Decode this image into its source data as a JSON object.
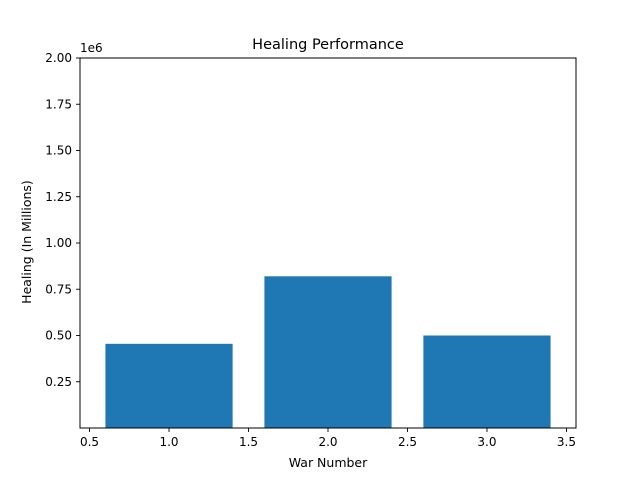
{
  "chart_data": {
    "type": "bar",
    "title": "Healing Performance",
    "xlabel": "War Number",
    "ylabel": "Healing (In Millions)",
    "y_scale_label": "1e6",
    "x": [
      1.0,
      2.0,
      3.0
    ],
    "values": [
      455000,
      820000,
      500000
    ],
    "bar_width": 0.8,
    "xlim": [
      0.44,
      3.56
    ],
    "ylim": [
      0,
      2000000
    ],
    "x_ticks": [
      {
        "value": 0.5,
        "label": "0.5"
      },
      {
        "value": 1.0,
        "label": "1.0"
      },
      {
        "value": 1.5,
        "label": "1.5"
      },
      {
        "value": 2.0,
        "label": "2.0"
      },
      {
        "value": 2.5,
        "label": "2.5"
      },
      {
        "value": 3.0,
        "label": "3.0"
      },
      {
        "value": 3.5,
        "label": "3.5"
      }
    ],
    "y_ticks": [
      {
        "value": 250000,
        "label": "0.25"
      },
      {
        "value": 500000,
        "label": "0.50"
      },
      {
        "value": 750000,
        "label": "0.75"
      },
      {
        "value": 1000000,
        "label": "1.00"
      },
      {
        "value": 1250000,
        "label": "1.25"
      },
      {
        "value": 1500000,
        "label": "1.50"
      },
      {
        "value": 1750000,
        "label": "1.75"
      },
      {
        "value": 2000000,
        "label": "2.00"
      }
    ],
    "bar_color": "#1f77b4",
    "grid": false,
    "legend": "none"
  }
}
